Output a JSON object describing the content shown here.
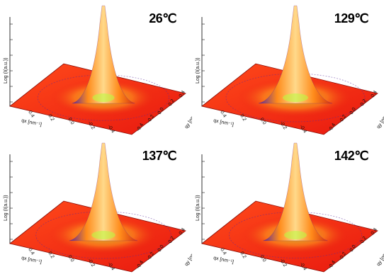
{
  "figure": {
    "panels": [
      {
        "label": "26℃"
      },
      {
        "label": "129℃"
      },
      {
        "label": "137℃"
      },
      {
        "label": "142℃"
      }
    ]
  },
  "axes": {
    "zlabel": "Log (I(a.u.))",
    "qx_label": "qx [nm⁻¹]",
    "qy_label": "qy [nm⁻¹]",
    "qx_ticks": [
      "0.4",
      "0.2",
      "0.0",
      "-0.2",
      "-0.4"
    ],
    "qy_ticks": [
      "-0.4",
      "-0.2",
      "0.0",
      "0.2",
      "0.4"
    ]
  },
  "colors": {
    "floor": "#e8180f",
    "peak_core": "#ffd98a",
    "peak_mid": "#ff8a1a",
    "peak_shadow": "#5a2a9a",
    "noise": "#b8ff40"
  },
  "chart_data": {
    "type": "surface",
    "description_of_axes": "3D SAXS intensity surface over qx, qy with logarithmic intensity axis",
    "qx_range": [
      -0.4,
      0.4
    ],
    "qy_range": [
      -0.4,
      0.4
    ],
    "panels": [
      {
        "temperature": "26℃",
        "peak_width_rel": 0.7
      },
      {
        "temperature": "129℃",
        "peak_width_rel": 1.0
      },
      {
        "temperature": "137℃",
        "peak_width_rel": 0.85
      },
      {
        "temperature": "142℃",
        "peak_width_rel": 0.75
      }
    ]
  }
}
